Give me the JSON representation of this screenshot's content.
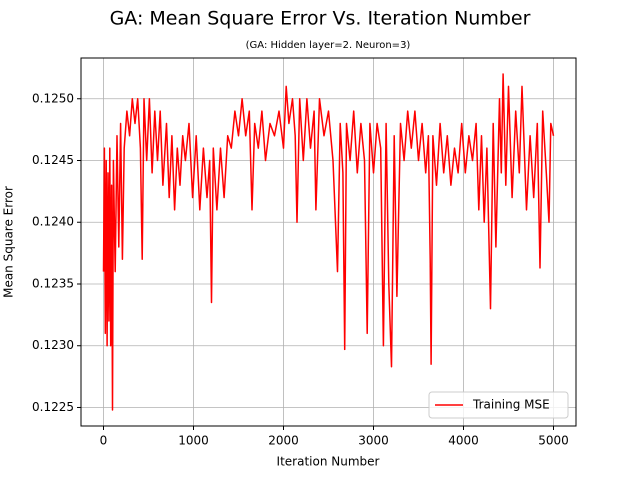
{
  "chart_data": {
    "type": "line",
    "title": "GA: Mean Square Error Vs. Iteration Number",
    "subtitle": "(GA: Hidden layer=2. Neuron=3)",
    "x_label": "Iteration Number",
    "y_label": "Mean Square Error",
    "xlim": [
      -250,
      5250
    ],
    "ylim": [
      0.12235,
      0.12533
    ],
    "xticks": [
      0,
      1000,
      2000,
      3000,
      4000,
      5000
    ],
    "yticks": [
      0.1225,
      {
        "value": 0.123,
        "label": "0.1230"
      },
      0.1235,
      {
        "value": 0.124,
        "label": "0.1240"
      },
      0.1245,
      {
        "value": 0.125,
        "label": "0.1250"
      }
    ],
    "grid": true,
    "legend": "lower right",
    "x": [
      0,
      10,
      20,
      30,
      40,
      50,
      60,
      70,
      80,
      90,
      100,
      110,
      130,
      150,
      170,
      190,
      210,
      230,
      260,
      290,
      320,
      350,
      380,
      410,
      430,
      450,
      480,
      510,
      540,
      570,
      600,
      630,
      660,
      700,
      730,
      760,
      790,
      820,
      850,
      880,
      910,
      950,
      990,
      1030,
      1070,
      1110,
      1150,
      1180,
      1200,
      1220,
      1260,
      1300,
      1340,
      1380,
      1420,
      1460,
      1500,
      1540,
      1580,
      1620,
      1650,
      1680,
      1720,
      1760,
      1800,
      1850,
      1900,
      1950,
      2000,
      2030,
      2060,
      2100,
      2130,
      2150,
      2180,
      2220,
      2260,
      2300,
      2340,
      2360,
      2400,
      2450,
      2500,
      2550,
      2600,
      2630,
      2660,
      2680,
      2700,
      2740,
      2780,
      2820,
      2860,
      2900,
      2930,
      2960,
      3000,
      3040,
      3080,
      3110,
      3140,
      3170,
      3200,
      3230,
      3260,
      3300,
      3340,
      3380,
      3420,
      3460,
      3500,
      3540,
      3580,
      3610,
      3630,
      3640,
      3660,
      3700,
      3740,
      3780,
      3820,
      3860,
      3900,
      3940,
      3980,
      4020,
      4060,
      4100,
      4140,
      4170,
      4200,
      4230,
      4260,
      4300,
      4330,
      4360,
      4400,
      4420,
      4440,
      4470,
      4500,
      4540,
      4580,
      4620,
      4650,
      4700,
      4740,
      4780,
      4820,
      4850,
      4880,
      4920,
      4950,
      4970,
      5000
    ],
    "series": [
      {
        "name": "Training MSE",
        "color": "#ff0000",
        "values": [
          0.1236,
          0.1246,
          0.1231,
          0.1245,
          0.123,
          0.1244,
          0.1232,
          0.1246,
          0.123,
          0.1243,
          0.12248,
          0.1245,
          0.1236,
          0.1247,
          0.1238,
          0.1248,
          0.1237,
          0.1246,
          0.1249,
          0.1247,
          0.125,
          0.1248,
          0.125,
          0.1246,
          0.1237,
          0.125,
          0.1245,
          0.125,
          0.1244,
          0.1249,
          0.1245,
          0.1249,
          0.1243,
          0.1248,
          0.1242,
          0.1247,
          0.1241,
          0.1246,
          0.1243,
          0.1247,
          0.1245,
          0.1248,
          0.1242,
          0.1247,
          0.1241,
          0.1246,
          0.1242,
          0.1245,
          0.12335,
          0.1246,
          0.1241,
          0.1246,
          0.1242,
          0.1247,
          0.1246,
          0.1249,
          0.1247,
          0.125,
          0.1247,
          0.1249,
          0.1241,
          0.1248,
          0.1246,
          0.1249,
          0.1245,
          0.1248,
          0.1247,
          0.1249,
          0.1246,
          0.1251,
          0.1248,
          0.125,
          0.1247,
          0.124,
          0.125,
          0.1245,
          0.125,
          0.1246,
          0.1249,
          0.1241,
          0.125,
          0.1247,
          0.1249,
          0.1245,
          0.1236,
          0.1248,
          0.1244,
          0.12297,
          0.1248,
          0.1245,
          0.1249,
          0.1244,
          0.1248,
          0.1245,
          0.1231,
          0.1248,
          0.1244,
          0.1248,
          0.1246,
          0.123,
          0.1248,
          0.1235,
          0.12283,
          0.1247,
          0.1234,
          0.1248,
          0.1245,
          0.1249,
          0.1246,
          0.1249,
          0.1245,
          0.1248,
          0.1244,
          0.1247,
          0.1237,
          0.12285,
          0.1247,
          0.1243,
          0.1248,
          0.1244,
          0.1247,
          0.1243,
          0.1246,
          0.1244,
          0.1248,
          0.1244,
          0.1247,
          0.1245,
          0.1248,
          0.1241,
          0.1247,
          0.124,
          0.1246,
          0.1233,
          0.1248,
          0.1238,
          0.125,
          0.1244,
          0.1252,
          0.1243,
          0.1251,
          0.1242,
          0.1249,
          0.1244,
          0.1251,
          0.1241,
          0.1247,
          0.1242,
          0.1248,
          0.12363,
          0.1249,
          0.1244,
          0.124,
          0.1248,
          0.1247
        ]
      }
    ]
  }
}
